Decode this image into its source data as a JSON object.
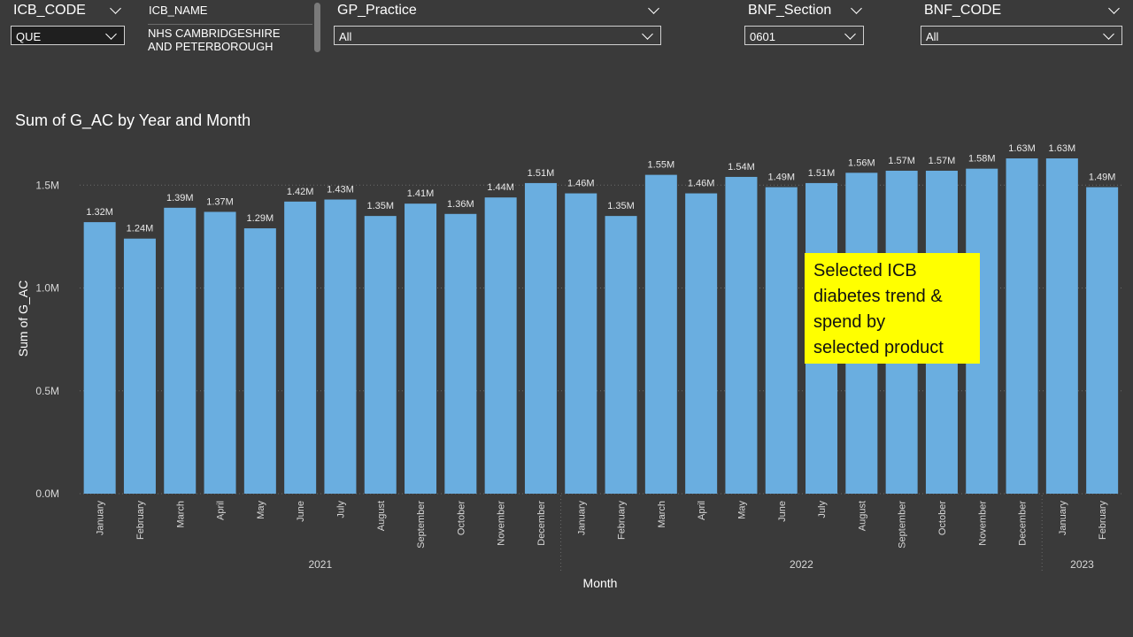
{
  "filters": {
    "icb_code": {
      "label": "ICB_CODE",
      "value": "QUE"
    },
    "icb_name": {
      "label": "ICB_NAME",
      "value_line1": "NHS CAMBRIDGESHIRE",
      "value_line2": "AND PETERBOROUGH"
    },
    "gp_practice": {
      "label": "GP_Practice",
      "value": "All"
    },
    "bnf_section": {
      "label": "BNF_Section",
      "value": "0601"
    },
    "bnf_code": {
      "label": "BNF_CODE",
      "value": "All"
    }
  },
  "annotation": {
    "line1": "Selected ICB",
    "line2": "diabetes trend &",
    "line3": "spend by",
    "line4": "selected product"
  },
  "colors": {
    "bar": "#6aaee0",
    "background": "#3a3a3a",
    "annotation": "#ffff00"
  },
  "chart_data": {
    "type": "bar",
    "title": "Sum of G_AC by Year and Month",
    "xlabel": "Month",
    "ylabel": "Sum of G_AC",
    "ylim": [
      0,
      1.6
    ],
    "y_unit": "M",
    "y_ticks": [
      "0.0M",
      "0.5M",
      "1.0M",
      "1.5M"
    ],
    "y_tick_values": [
      0,
      0.5,
      1.0,
      1.5
    ],
    "grid": true,
    "categories": [
      "January",
      "February",
      "March",
      "April",
      "May",
      "June",
      "July",
      "August",
      "September",
      "October",
      "November",
      "December",
      "January",
      "February",
      "March",
      "April",
      "May",
      "June",
      "July",
      "August",
      "September",
      "October",
      "November",
      "December",
      "January",
      "February"
    ],
    "years": [
      {
        "label": "2021",
        "start": 0,
        "end": 11
      },
      {
        "label": "2022",
        "start": 12,
        "end": 23
      },
      {
        "label": "2023",
        "start": 24,
        "end": 25
      }
    ],
    "values": [
      1.32,
      1.24,
      1.39,
      1.37,
      1.29,
      1.42,
      1.43,
      1.35,
      1.41,
      1.36,
      1.44,
      1.51,
      1.46,
      1.35,
      1.55,
      1.46,
      1.54,
      1.49,
      1.51,
      1.56,
      1.57,
      1.57,
      1.58,
      1.63,
      1.63,
      1.49
    ],
    "data_labels": [
      "1.32M",
      "1.24M",
      "1.39M",
      "1.37M",
      "1.29M",
      "1.42M",
      "1.43M",
      "1.35M",
      "1.41M",
      "1.36M",
      "1.44M",
      "1.51M",
      "1.46M",
      "1.35M",
      "1.55M",
      "1.46M",
      "1.54M",
      "1.49M",
      "1.51M",
      "1.56M",
      "1.57M",
      "1.57M",
      "1.58M",
      "1.63M",
      "1.63M",
      "1.49M"
    ]
  }
}
